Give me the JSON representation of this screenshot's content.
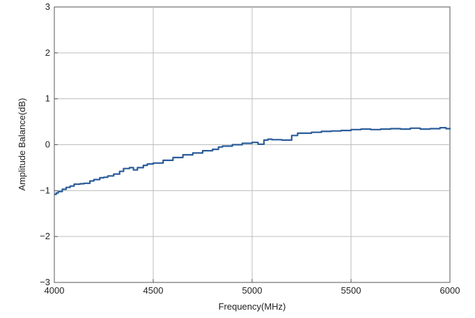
{
  "chart_data": {
    "type": "line",
    "title": "",
    "xlabel": "Frequency(MHz)",
    "ylabel": "Amplitude Balance(dB)",
    "xlim": [
      4000,
      6000
    ],
    "ylim": [
      -3,
      3
    ],
    "xticks": [
      "4000",
      "4500",
      "5000",
      "5500",
      "6000"
    ],
    "yticks": [
      "3",
      "2",
      "1",
      "0",
      "−1",
      "−2",
      "−3"
    ],
    "grid": true,
    "legend": "none",
    "line_color": "#2b5c99",
    "series": [
      {
        "x": [
          4000,
          4010,
          4020,
          4040,
          4060,
          4080,
          4100,
          4130,
          4150,
          4180,
          4200,
          4230,
          4250,
          4270,
          4300,
          4330,
          4350,
          4380,
          4400,
          4420,
          4450,
          4470,
          4500,
          4550,
          4600,
          4650,
          4700,
          4750,
          4800,
          4830,
          4850,
          4900,
          4950,
          5000,
          5030,
          5060,
          5080,
          5100,
          5150,
          5200,
          5230,
          5300,
          5350,
          5400,
          5450,
          5500,
          5550,
          5600,
          5650,
          5700,
          5750,
          5800,
          5850,
          5900,
          5950,
          5980,
          6000
        ],
        "y": [
          -1.08,
          -1.05,
          -1.02,
          -0.97,
          -0.93,
          -0.9,
          -0.86,
          -0.85,
          -0.84,
          -0.79,
          -0.76,
          -0.72,
          -0.71,
          -0.68,
          -0.64,
          -0.58,
          -0.52,
          -0.5,
          -0.55,
          -0.5,
          -0.45,
          -0.42,
          -0.4,
          -0.34,
          -0.28,
          -0.22,
          -0.18,
          -0.13,
          -0.1,
          -0.05,
          -0.03,
          0.0,
          0.03,
          0.05,
          0.01,
          0.1,
          0.12,
          0.11,
          0.1,
          0.2,
          0.25,
          0.27,
          0.29,
          0.3,
          0.31,
          0.33,
          0.34,
          0.33,
          0.34,
          0.35,
          0.34,
          0.36,
          0.34,
          0.35,
          0.37,
          0.35,
          0.33
        ]
      }
    ]
  }
}
